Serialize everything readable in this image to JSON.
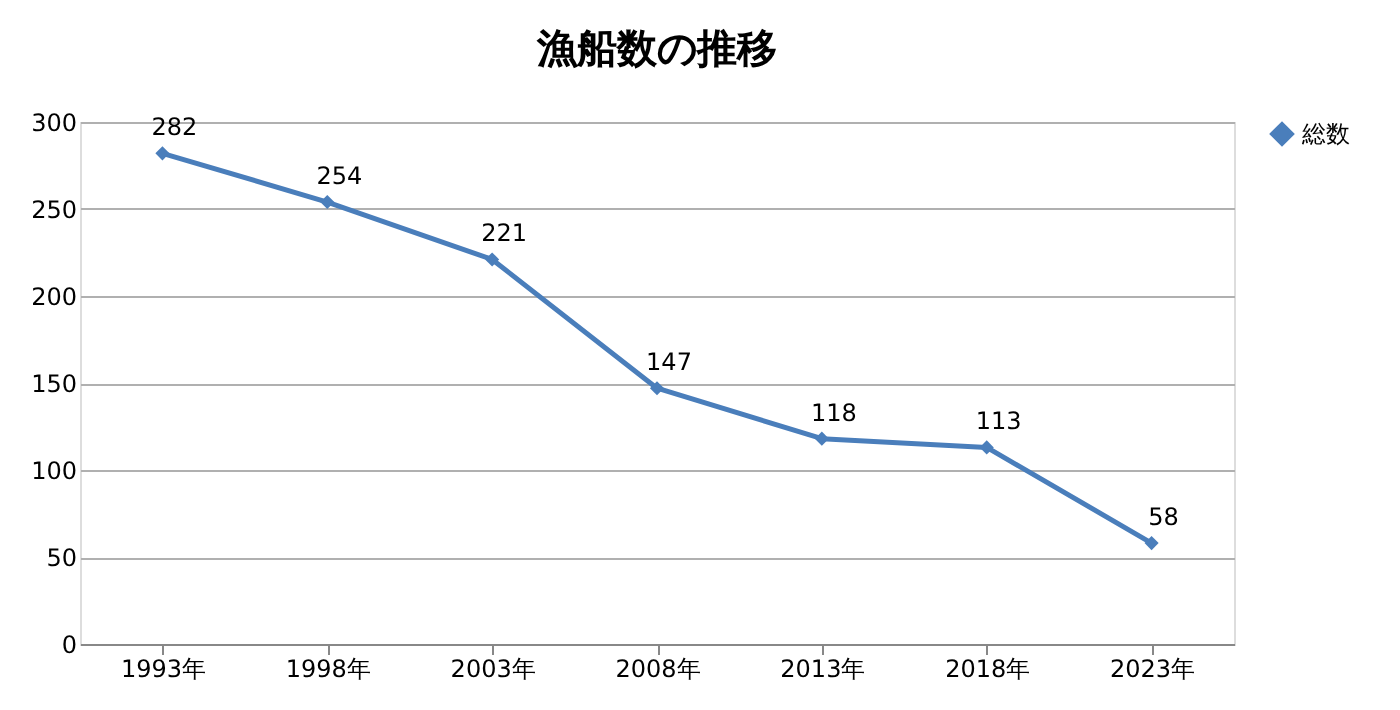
{
  "chart_data": {
    "type": "line",
    "title": "漁船数の推移",
    "categories": [
      "1993年",
      "1998年",
      "2003年",
      "2008年",
      "2013年",
      "2018年",
      "2023年"
    ],
    "series": [
      {
        "name": "総数",
        "color": "#4a7ebb",
        "values": [
          282,
          254,
          221,
          147,
          118,
          113,
          58
        ]
      }
    ],
    "ylim": [
      0,
      300
    ],
    "yticks": [
      0,
      50,
      100,
      150,
      200,
      250,
      300
    ],
    "grid": "y",
    "legend": "right",
    "marker": "diamond",
    "line_style": "solid",
    "data_labels": true
  }
}
